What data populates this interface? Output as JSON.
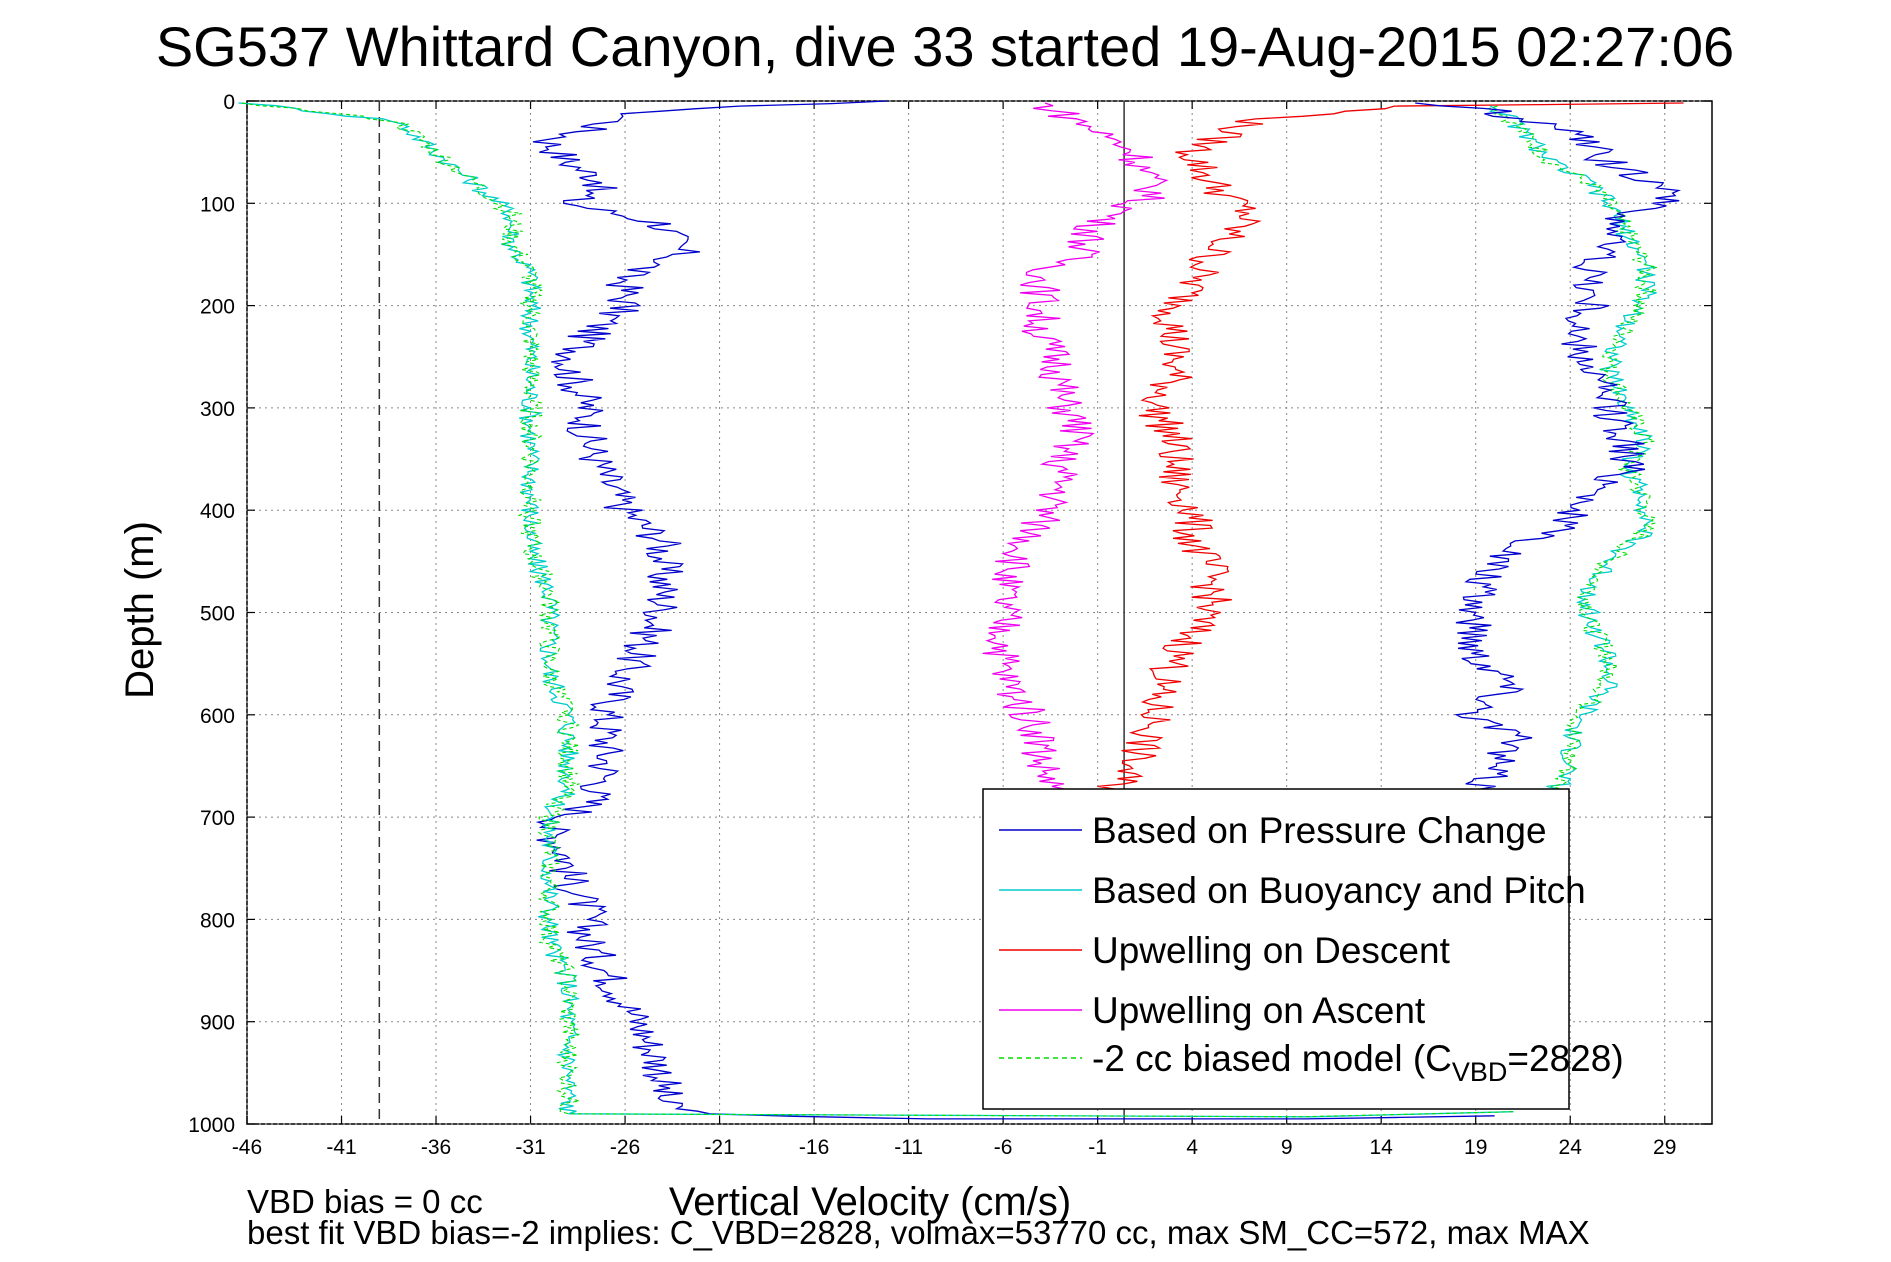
{
  "chart_data": {
    "type": "line",
    "title": "SG537 Whittard Canyon, dive 33 started 19-Aug-2015 02:27:06",
    "xlabel": "Vertical Velocity (cm/s)",
    "ylabel": "Depth (m)",
    "xlim": [
      -46,
      31.5
    ],
    "ylim": [
      0,
      1000
    ],
    "y_reversed": true,
    "xticks": [
      -46,
      -41,
      -36,
      -31,
      -26,
      -21,
      -16,
      -11,
      -6,
      -1,
      4,
      9,
      14,
      19,
      24,
      29
    ],
    "yticks": [
      0,
      100,
      200,
      300,
      400,
      500,
      600,
      700,
      800,
      900,
      1000
    ],
    "grid": true,
    "legend_position": "bottom-right",
    "reference_lines": {
      "dashed_x": -39,
      "solid_x": 0.4
    },
    "series": [
      {
        "name": "Based on Pressure Change",
        "color": "#0000cc",
        "points": [
          [
            -13,
            0
          ],
          [
            -25,
            10
          ],
          [
            -30,
            40
          ],
          [
            -29,
            60
          ],
          [
            -27,
            80
          ],
          [
            -29,
            100
          ],
          [
            -24,
            120
          ],
          [
            -23,
            150
          ],
          [
            -26,
            170
          ],
          [
            -26,
            200
          ],
          [
            -28,
            230
          ],
          [
            -29,
            260
          ],
          [
            -28,
            300
          ],
          [
            -28,
            330
          ],
          [
            -27,
            370
          ],
          [
            -26,
            400
          ],
          [
            -24,
            430
          ],
          [
            -24,
            470
          ],
          [
            -24,
            500
          ],
          [
            -25,
            530
          ],
          [
            -26,
            560
          ],
          [
            -27,
            600
          ],
          [
            -27,
            630
          ],
          [
            -27,
            660
          ],
          [
            -28,
            690
          ],
          [
            -30,
            710
          ],
          [
            -29,
            740
          ],
          [
            -29,
            760
          ],
          [
            -28,
            790
          ],
          [
            -28,
            820
          ],
          [
            -27,
            850
          ],
          [
            -26,
            880
          ],
          [
            -25,
            910
          ],
          [
            -24,
            950
          ],
          [
            -24,
            980
          ],
          [
            -22,
            990
          ],
          [
            -10,
            995
          ],
          [
            10,
            995
          ],
          [
            20,
            992
          ]
        ]
      },
      {
        "name": "Based on Buoyancy and Pitch",
        "color": "#00cccc",
        "points": [
          [
            -46,
            2
          ],
          [
            -38,
            20
          ],
          [
            -36,
            50
          ],
          [
            -34,
            80
          ],
          [
            -32,
            110
          ],
          [
            -32,
            140
          ],
          [
            -31,
            170
          ],
          [
            -31,
            200
          ],
          [
            -31,
            240
          ],
          [
            -31,
            280
          ],
          [
            -31,
            320
          ],
          [
            -31,
            360
          ],
          [
            -31,
            400
          ],
          [
            -31,
            440
          ],
          [
            -30,
            480
          ],
          [
            -30,
            520
          ],
          [
            -30,
            560
          ],
          [
            -29,
            600
          ],
          [
            -29,
            640
          ],
          [
            -29,
            670
          ],
          [
            -30,
            700
          ],
          [
            -30,
            740
          ],
          [
            -30,
            780
          ],
          [
            -30,
            820
          ],
          [
            -29,
            860
          ],
          [
            -29,
            900
          ],
          [
            -29,
            940
          ],
          [
            -29,
            990
          ],
          [
            10,
            993
          ],
          [
            21,
            988
          ]
        ]
      },
      {
        "name": "Upwelling on Descent",
        "color": "#ee0000",
        "points": [
          [
            30,
            2
          ],
          [
            15,
            5
          ],
          [
            7,
            20
          ],
          [
            4,
            50
          ],
          [
            5,
            80
          ],
          [
            7,
            110
          ],
          [
            5,
            150
          ],
          [
            4,
            180
          ],
          [
            3,
            210
          ],
          [
            3,
            240
          ],
          [
            3,
            270
          ],
          [
            2,
            300
          ],
          [
            3,
            330
          ],
          [
            3,
            370
          ],
          [
            4,
            400
          ],
          [
            4,
            430
          ],
          [
            5,
            460
          ],
          [
            5,
            490
          ],
          [
            4,
            520
          ],
          [
            3,
            550
          ],
          [
            2,
            580
          ],
          [
            2,
            610
          ],
          [
            1,
            640
          ],
          [
            0,
            670
          ],
          [
            1,
            700
          ]
        ]
      },
      {
        "name": "Upwelling on Ascent",
        "color": "#ee00ee",
        "points": [
          [
            -4,
            2
          ],
          [
            -2,
            20
          ],
          [
            1,
            50
          ],
          [
            2,
            90
          ],
          [
            -1,
            120
          ],
          [
            -2,
            150
          ],
          [
            -4,
            170
          ],
          [
            -4,
            200
          ],
          [
            -4,
            230
          ],
          [
            -3,
            260
          ],
          [
            -3,
            290
          ],
          [
            -2,
            320
          ],
          [
            -3,
            350
          ],
          [
            -3,
            380
          ],
          [
            -4,
            410
          ],
          [
            -5,
            440
          ],
          [
            -6,
            470
          ],
          [
            -6,
            500
          ],
          [
            -6,
            530
          ],
          [
            -6,
            560
          ],
          [
            -5,
            590
          ],
          [
            -4,
            620
          ],
          [
            -4,
            650
          ],
          [
            -3,
            680
          ]
        ]
      },
      {
        "name": "-2 cc biased model (C",
        "name_sub": "VBD",
        "name_tail": "=2828)",
        "color": "#00dd00",
        "dashed": true,
        "legend_only": true
      }
    ],
    "ascent_buoyancy_segment": {
      "color": "#00dd00",
      "points": [
        [
          20,
          5
        ],
        [
          21,
          20
        ],
        [
          22,
          40
        ],
        [
          23,
          60
        ],
        [
          25,
          80
        ],
        [
          26,
          100
        ],
        [
          27,
          130
        ],
        [
          28,
          160
        ],
        [
          28,
          190
        ],
        [
          27,
          220
        ],
        [
          26,
          260
        ],
        [
          27,
          300
        ],
        [
          28,
          330
        ],
        [
          27,
          360
        ],
        [
          28,
          390
        ],
        [
          28,
          420
        ],
        [
          26,
          450
        ],
        [
          25,
          480
        ],
        [
          25,
          510
        ],
        [
          26,
          540
        ],
        [
          26,
          570
        ],
        [
          25,
          590
        ],
        [
          24,
          620
        ],
        [
          24,
          650
        ],
        [
          23,
          680
        ]
      ]
    },
    "ascent_pressure_segment": {
      "color": "#0000cc",
      "points": [
        [
          16,
          2
        ],
        [
          20,
          10
        ],
        [
          24,
          30
        ],
        [
          26,
          60
        ],
        [
          30,
          90
        ],
        [
          27,
          110
        ],
        [
          26,
          140
        ],
        [
          25,
          170
        ],
        [
          25,
          200
        ],
        [
          24,
          230
        ],
        [
          25,
          260
        ],
        [
          26,
          300
        ],
        [
          27,
          330
        ],
        [
          27,
          360
        ],
        [
          25,
          390
        ],
        [
          23,
          420
        ],
        [
          20,
          450
        ],
        [
          19,
          480
        ],
        [
          19,
          510
        ],
        [
          19,
          540
        ],
        [
          21,
          570
        ],
        [
          19,
          600
        ],
        [
          21,
          620
        ],
        [
          20,
          650
        ],
        [
          19,
          680
        ]
      ]
    },
    "annotations": [
      "VBD bias = 0 cc",
      "best fit VBD bias=-2 implies: C_VBD=2828, volmax=53770 cc, max SM_CC=572, max MAX"
    ]
  }
}
